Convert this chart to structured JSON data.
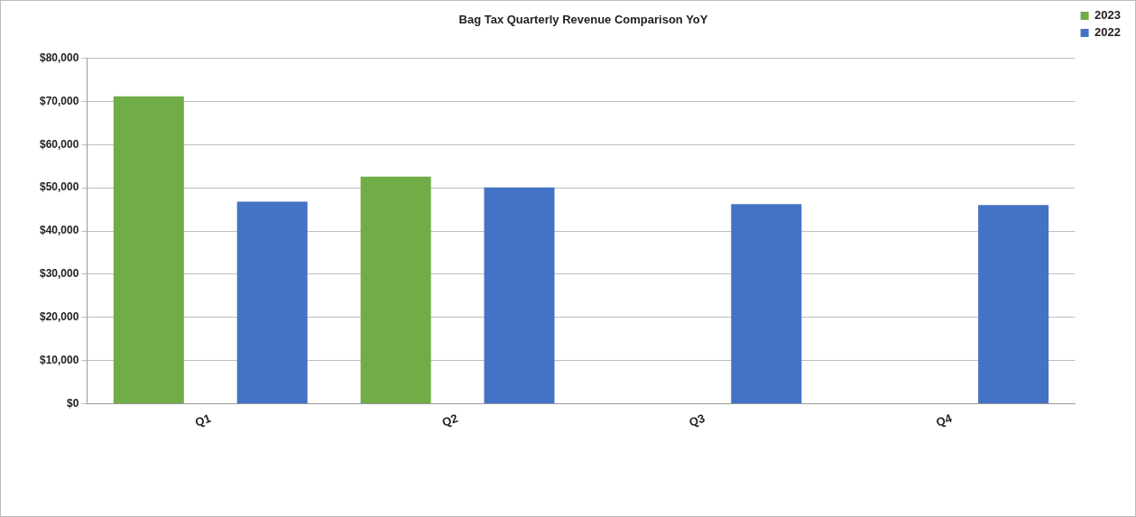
{
  "chart_data": {
    "type": "bar",
    "title": "Bag Tax Quarterly Revenue Comparison YoY",
    "categories": [
      "Q1",
      "Q2",
      "Q3",
      "Q4"
    ],
    "series": [
      {
        "name": "2023",
        "color": "#70ad47",
        "values": [
          71200,
          52600,
          null,
          null
        ]
      },
      {
        "name": "2022",
        "color": "#4472c4",
        "values": [
          46800,
          50100,
          46200,
          46000
        ]
      }
    ],
    "ylim": [
      0,
      80000
    ],
    "yticks": [
      {
        "value": 0,
        "label": "$0"
      },
      {
        "value": 10000,
        "label": "$10,000"
      },
      {
        "value": 20000,
        "label": "$20,000"
      },
      {
        "value": 30000,
        "label": "$30,000"
      },
      {
        "value": 40000,
        "label": "$40,000"
      },
      {
        "value": 50000,
        "label": "$50,000"
      },
      {
        "value": 60000,
        "label": "$60,000"
      },
      {
        "value": 70000,
        "label": "$70,000"
      },
      {
        "value": 80000,
        "label": "$80,000"
      }
    ],
    "grid": "y",
    "legend": "top right"
  }
}
